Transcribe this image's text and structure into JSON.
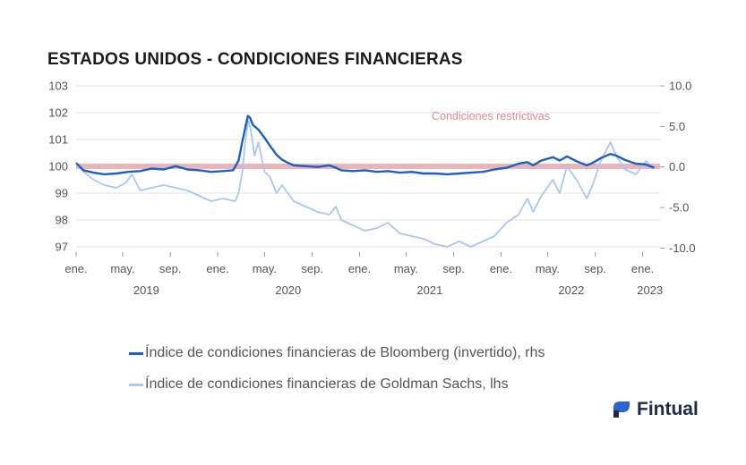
{
  "title": "ESTADOS UNIDOS - CONDICIONES FINANCIERAS",
  "brand": {
    "name": "Fintual",
    "logo_icon": "fintual-logo-icon"
  },
  "colors": {
    "bloomberg": "#1b5fc7",
    "goldman": "#a8c8f2",
    "restrictive_band": "#e7a8ad",
    "annotation": "#e08a8f",
    "grid": "#e3e3e3"
  },
  "chart_data": {
    "type": "line",
    "title": "ESTADOS UNIDOS - CONDICIONES FINANCIERAS",
    "xlabel": "",
    "ylabel_left": "",
    "ylabel_right": "",
    "x_range": [
      "2019-01-01",
      "2023-02-15"
    ],
    "y_left": {
      "ylim": [
        96.8,
        103
      ],
      "ticks": [
        "103",
        "102",
        "101",
        "100",
        "99",
        "98",
        "97"
      ]
    },
    "y_right": {
      "ylim": [
        -10.5,
        10
      ],
      "ticks": [
        "10.0",
        "5.0",
        "0.0",
        "-5.0",
        "-10.0"
      ]
    },
    "x_ticks": [
      {
        "date": "2019-01-01",
        "label": "ene."
      },
      {
        "date": "2019-05-01",
        "label": "may."
      },
      {
        "date": "2019-09-01",
        "label": "sep."
      },
      {
        "date": "2020-01-01",
        "label": "ene."
      },
      {
        "date": "2020-05-01",
        "label": "may."
      },
      {
        "date": "2020-09-01",
        "label": "sep."
      },
      {
        "date": "2021-01-01",
        "label": "ene."
      },
      {
        "date": "2021-05-01",
        "label": "may."
      },
      {
        "date": "2021-09-01",
        "label": "sep."
      },
      {
        "date": "2022-01-01",
        "label": "ene."
      },
      {
        "date": "2022-05-01",
        "label": "may."
      },
      {
        "date": "2022-09-01",
        "label": "sep."
      },
      {
        "date": "2023-01-01",
        "label": "ene."
      }
    ],
    "year_labels": [
      {
        "date": "2019-07-01",
        "label": "2019"
      },
      {
        "date": "2020-07-01",
        "label": "2020"
      },
      {
        "date": "2021-07-01",
        "label": "2021"
      },
      {
        "date": "2022-07-01",
        "label": "2022"
      },
      {
        "date": "2023-01-20",
        "label": "2023"
      }
    ],
    "grid": true,
    "annotation": {
      "text": "Condiciones restrictivas",
      "band_value_left": 100
    },
    "legend_position": "bottom",
    "series": [
      {
        "name": "Índice de condiciones financieras de Bloomberg (invertido), rhs",
        "axis": "right",
        "points": [
          [
            "2019-01-01",
            0.5
          ],
          [
            "2019-01-20",
            -0.4
          ],
          [
            "2019-02-15",
            -0.7
          ],
          [
            "2019-03-15",
            -0.9
          ],
          [
            "2019-04-15",
            -0.8
          ],
          [
            "2019-05-15",
            -0.6
          ],
          [
            "2019-06-15",
            -0.5
          ],
          [
            "2019-07-15",
            -0.2
          ],
          [
            "2019-08-15",
            -0.3
          ],
          [
            "2019-09-15",
            0.1
          ],
          [
            "2019-10-15",
            -0.3
          ],
          [
            "2019-11-15",
            -0.4
          ],
          [
            "2019-12-15",
            -0.6
          ],
          [
            "2020-01-15",
            -0.5
          ],
          [
            "2020-02-10",
            -0.4
          ],
          [
            "2020-02-24",
            0.8
          ],
          [
            "2020-03-05",
            3.2
          ],
          [
            "2020-03-12",
            4.8
          ],
          [
            "2020-03-19",
            6.3
          ],
          [
            "2020-03-24",
            6.1
          ],
          [
            "2020-04-01",
            5.2
          ],
          [
            "2020-04-15",
            4.6
          ],
          [
            "2020-05-01",
            3.6
          ],
          [
            "2020-05-15",
            2.6
          ],
          [
            "2020-06-01",
            1.5
          ],
          [
            "2020-06-15",
            0.9
          ],
          [
            "2020-07-01",
            0.5
          ],
          [
            "2020-07-15",
            0.2
          ],
          [
            "2020-08-15",
            0.1
          ],
          [
            "2020-09-15",
            0.0
          ],
          [
            "2020-10-15",
            0.2
          ],
          [
            "2020-11-01",
            -0.1
          ],
          [
            "2020-11-15",
            -0.4
          ],
          [
            "2020-12-15",
            -0.5
          ],
          [
            "2021-01-15",
            -0.4
          ],
          [
            "2021-02-15",
            -0.6
          ],
          [
            "2021-03-15",
            -0.5
          ],
          [
            "2021-04-15",
            -0.7
          ],
          [
            "2021-05-15",
            -0.6
          ],
          [
            "2021-06-15",
            -0.8
          ],
          [
            "2021-07-15",
            -0.8
          ],
          [
            "2021-08-15",
            -0.9
          ],
          [
            "2021-09-15",
            -0.8
          ],
          [
            "2021-10-15",
            -0.7
          ],
          [
            "2021-11-15",
            -0.6
          ],
          [
            "2021-12-15",
            -0.3
          ],
          [
            "2022-01-15",
            -0.1
          ],
          [
            "2022-02-15",
            0.4
          ],
          [
            "2022-03-10",
            0.6
          ],
          [
            "2022-03-25",
            0.2
          ],
          [
            "2022-04-15",
            0.8
          ],
          [
            "2022-05-15",
            1.2
          ],
          [
            "2022-06-01",
            0.8
          ],
          [
            "2022-06-20",
            1.3
          ],
          [
            "2022-07-15",
            0.7
          ],
          [
            "2022-08-10",
            0.2
          ],
          [
            "2022-08-25",
            0.5
          ],
          [
            "2022-09-15",
            1.1
          ],
          [
            "2022-10-10",
            1.6
          ],
          [
            "2022-10-25",
            1.4
          ],
          [
            "2022-11-15",
            0.9
          ],
          [
            "2022-12-15",
            0.4
          ],
          [
            "2023-01-10",
            0.3
          ],
          [
            "2023-01-31",
            -0.1
          ]
        ]
      },
      {
        "name": "Índice de condiciones financieras de Goldman Sachs, lhs",
        "axis": "left",
        "points": [
          [
            "2019-01-01",
            100.1
          ],
          [
            "2019-01-20",
            99.8
          ],
          [
            "2019-02-15",
            99.5
          ],
          [
            "2019-03-15",
            99.3
          ],
          [
            "2019-04-15",
            99.2
          ],
          [
            "2019-05-10",
            99.4
          ],
          [
            "2019-05-25",
            99.7
          ],
          [
            "2019-06-15",
            99.1
          ],
          [
            "2019-07-15",
            99.2
          ],
          [
            "2019-08-15",
            99.3
          ],
          [
            "2019-09-15",
            99.2
          ],
          [
            "2019-10-15",
            99.1
          ],
          [
            "2019-11-15",
            98.9
          ],
          [
            "2019-12-15",
            98.7
          ],
          [
            "2020-01-15",
            98.8
          ],
          [
            "2020-02-15",
            98.7
          ],
          [
            "2020-02-24",
            99.0
          ],
          [
            "2020-03-05",
            99.8
          ],
          [
            "2020-03-12",
            100.9
          ],
          [
            "2020-03-20",
            101.7
          ],
          [
            "2020-03-26",
            101.4
          ],
          [
            "2020-04-05",
            100.4
          ],
          [
            "2020-04-15",
            100.9
          ],
          [
            "2020-05-01",
            99.8
          ],
          [
            "2020-05-15",
            99.6
          ],
          [
            "2020-06-01",
            99.0
          ],
          [
            "2020-06-15",
            99.3
          ],
          [
            "2020-07-15",
            98.7
          ],
          [
            "2020-08-15",
            98.5
          ],
          [
            "2020-09-15",
            98.3
          ],
          [
            "2020-10-15",
            98.2
          ],
          [
            "2020-11-01",
            98.5
          ],
          [
            "2020-11-15",
            98.0
          ],
          [
            "2020-12-15",
            97.8
          ],
          [
            "2021-01-15",
            97.6
          ],
          [
            "2021-02-15",
            97.7
          ],
          [
            "2021-03-15",
            97.9
          ],
          [
            "2021-04-15",
            97.5
          ],
          [
            "2021-05-15",
            97.4
          ],
          [
            "2021-06-15",
            97.3
          ],
          [
            "2021-07-15",
            97.1
          ],
          [
            "2021-08-15",
            97.0
          ],
          [
            "2021-09-15",
            97.2
          ],
          [
            "2021-10-15",
            97.0
          ],
          [
            "2021-11-15",
            97.2
          ],
          [
            "2021-12-15",
            97.4
          ],
          [
            "2022-01-15",
            97.9
          ],
          [
            "2022-02-15",
            98.2
          ],
          [
            "2022-03-10",
            98.8
          ],
          [
            "2022-03-25",
            98.3
          ],
          [
            "2022-04-15",
            98.9
          ],
          [
            "2022-05-15",
            99.5
          ],
          [
            "2022-06-01",
            99.0
          ],
          [
            "2022-06-20",
            100.0
          ],
          [
            "2022-07-15",
            99.5
          ],
          [
            "2022-08-10",
            98.8
          ],
          [
            "2022-08-25",
            99.3
          ],
          [
            "2022-09-15",
            100.2
          ],
          [
            "2022-10-10",
            100.9
          ],
          [
            "2022-10-25",
            100.4
          ],
          [
            "2022-11-15",
            99.9
          ],
          [
            "2022-12-15",
            99.7
          ],
          [
            "2023-01-10",
            100.2
          ],
          [
            "2023-01-31",
            99.9
          ]
        ]
      }
    ]
  }
}
